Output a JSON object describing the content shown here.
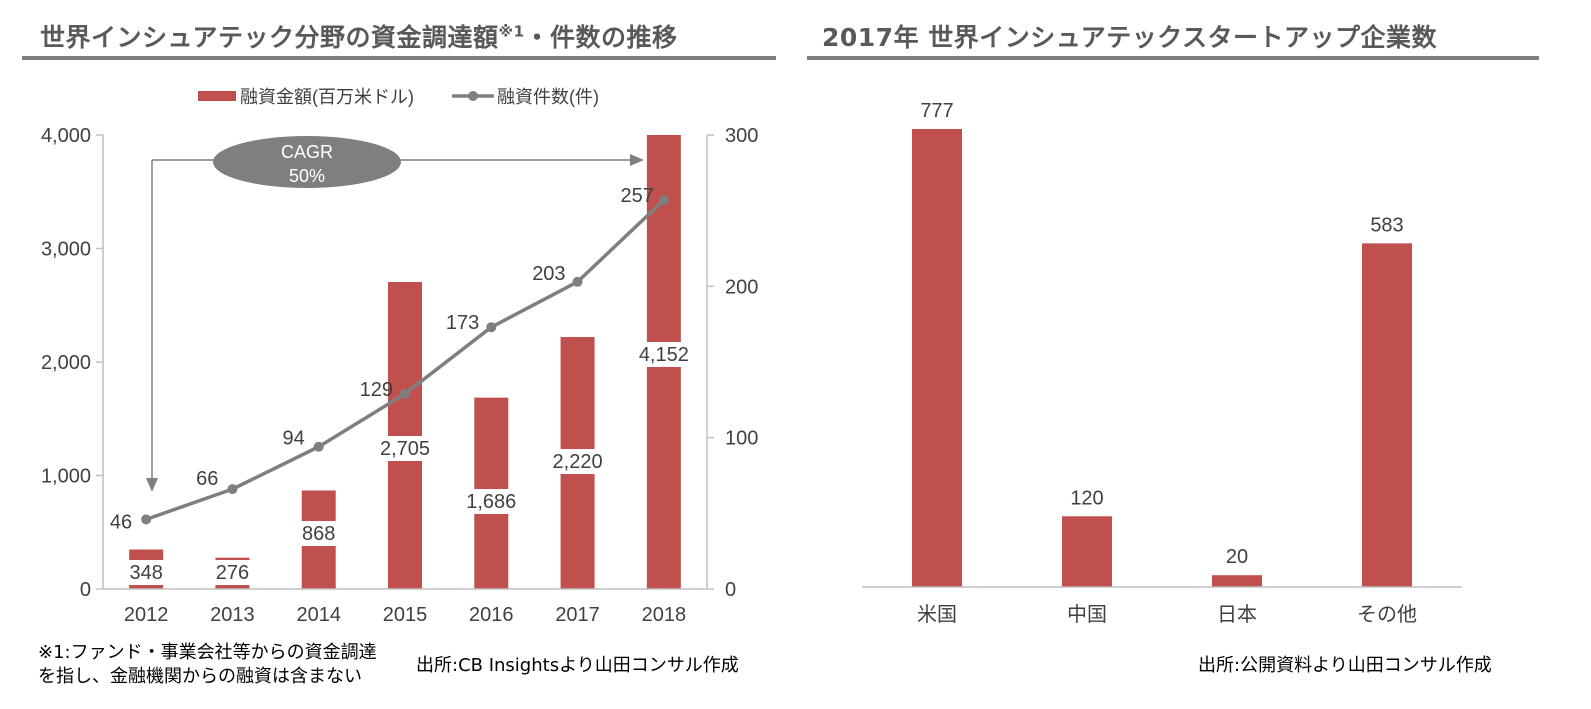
{
  "left_panel": {
    "title": "世界インシュアテック分野の資金調達額",
    "title_sup": "※1",
    "title_suffix": "・件数の推移",
    "footnote_line1": "※1:ファンド・事業会社等からの資金調達",
    "footnote_line2": "を指し、金融機関からの融資は含まない",
    "source": "出所:CB Insightsより山田コンサル作成",
    "cagr_label_line1": "CAGR",
    "cagr_label_line2": "50%"
  },
  "right_panel": {
    "title": "2017年 世界インシュアテックスタートアップ企業数",
    "source": "出所:公開資料より山田コンサル作成"
  },
  "colors": {
    "bar": "#c0504d",
    "line": "#7f7f7f",
    "rule": "#7f7f7f",
    "cagr_ellipse": "#7f7f7f"
  },
  "chart_data": [
    {
      "type": "bar+line",
      "categories": [
        "2012",
        "2013",
        "2014",
        "2015",
        "2016",
        "2017",
        "2018"
      ],
      "series": [
        {
          "name": "融資金額(百万米ドル)",
          "type": "bar",
          "axis": "left",
          "values": [
            348,
            276,
            868,
            2705,
            1686,
            2220,
            4152
          ],
          "labels": [
            "348",
            "276",
            "868",
            "2,705",
            "1,686",
            "2,220",
            "4,152"
          ]
        },
        {
          "name": "融資件数(件)",
          "type": "line",
          "axis": "right",
          "values": [
            46,
            66,
            94,
            129,
            173,
            203,
            257
          ],
          "labels": [
            "46",
            "66",
            "94",
            "129",
            "173",
            "203",
            "257"
          ]
        }
      ],
      "y_left": {
        "range": [
          0,
          4000
        ],
        "ticks": [
          "0",
          "1,000",
          "2,000",
          "3,000",
          "4,000"
        ],
        "tick_values": [
          0,
          1000,
          2000,
          3000,
          4000
        ]
      },
      "y_right": {
        "range": [
          0,
          300
        ],
        "ticks": [
          "0",
          "100",
          "200",
          "300"
        ],
        "tick_values": [
          0,
          100,
          200,
          300
        ]
      },
      "legend_position": "top-center",
      "grid": false
    },
    {
      "type": "bar",
      "categories": [
        "米国",
        "中国",
        "日本",
        "その他"
      ],
      "values": [
        777,
        120,
        20,
        583
      ],
      "labels": [
        "777",
        "120",
        "20",
        "583"
      ],
      "ylim": [
        0,
        777
      ],
      "grid": false
    }
  ]
}
